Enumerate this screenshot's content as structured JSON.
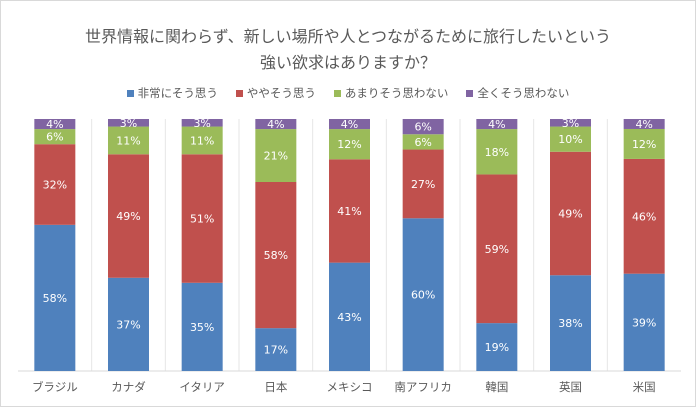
{
  "chart_data": {
    "type": "bar",
    "stacked": true,
    "title_lines": [
      "世界情報に関わらず、新しい場所や人とつながるために旅行したいという",
      "強い欲求はありますか？"
    ],
    "legend_position": "top",
    "categories": [
      "ブラジル",
      "カナダ",
      "イタリア",
      "日本",
      "メキシコ",
      "南アフリカ",
      "韓国",
      "英国",
      "米国"
    ],
    "series": [
      {
        "name": "非常にそう思う",
        "color": "#4f81bd",
        "values": [
          58,
          37,
          35,
          17,
          43,
          60,
          19,
          38,
          39
        ]
      },
      {
        "name": "ややそう思う",
        "color": "#c0504d",
        "values": [
          32,
          49,
          51,
          58,
          41,
          27,
          59,
          49,
          46
        ]
      },
      {
        "name": "あまりそう思わない",
        "color": "#9bbb59",
        "values": [
          6,
          11,
          11,
          21,
          12,
          6,
          18,
          10,
          12
        ]
      },
      {
        "name": "全くそう思わない",
        "color": "#8064a2",
        "values": [
          4,
          3,
          3,
          4,
          4,
          6,
          4,
          3,
          4
        ]
      }
    ],
    "value_suffix": "%",
    "ylim": [
      0,
      100
    ],
    "grid": "vertical separators between categories"
  }
}
